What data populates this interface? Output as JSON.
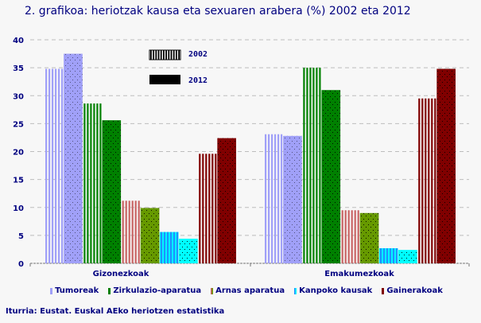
{
  "title": "2. grafikoa: heriotzak kausa eta sexuaren arabera (%) 2002 eta 2012",
  "source": "Iturria: Eustat. Euskal AEko heriotzen estatistika",
  "chart_data": {
    "type": "bar",
    "title": "2. grafikoa: heriotzak kausa eta sexuaren arabera (%) 2002 eta 2012",
    "categories": [
      "Gizonezkoak",
      "Emakumezkoak"
    ],
    "causes": [
      "Tumoreak",
      "Zirkulazio-aparatua",
      "Arnas aparatua",
      "Kanpoko kausak",
      "Gainerakoak"
    ],
    "years": [
      "2002",
      "2012"
    ],
    "cause_colors": [
      "#a0a0f8",
      "#008000",
      "#c86464",
      "#1e90ff",
      "#800000"
    ],
    "cause_colors_2012": [
      "#a0a0f8",
      "#008000",
      "#669900",
      "#00ffff",
      "#800000"
    ],
    "series": [
      {
        "cause": "Tumoreak",
        "values_2002": [
          34.8,
          23.1
        ],
        "values_2012": [
          37.5,
          22.8
        ]
      },
      {
        "cause": "Zirkulazio-aparatua",
        "values_2002": [
          28.6,
          35.0
        ],
        "values_2012": [
          25.6,
          31.0
        ]
      },
      {
        "cause": "Arnas aparatua",
        "values_2002": [
          11.2,
          9.5
        ],
        "values_2012": [
          9.9,
          9.0
        ]
      },
      {
        "cause": "Kanpoko kausak",
        "values_2002": [
          5.6,
          2.7
        ],
        "values_2012": [
          4.4,
          2.4
        ]
      },
      {
        "cause": "Gainerakoak",
        "values_2002": [
          19.6,
          29.5
        ],
        "values_2012": [
          22.4,
          34.8
        ]
      }
    ],
    "ylim": [
      0,
      40
    ],
    "yticks": [
      0,
      5,
      10,
      15,
      20,
      25,
      30,
      35,
      40
    ],
    "grid": true,
    "legend": "bottom",
    "year_legend": "top-inside"
  }
}
